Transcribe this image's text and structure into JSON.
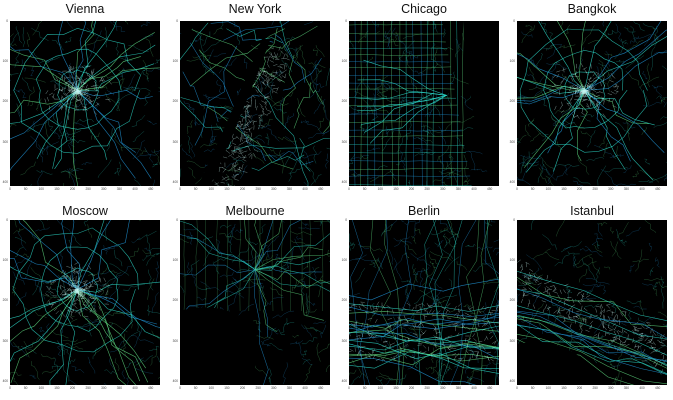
{
  "figure": {
    "panels": [
      {
        "city": "Vienna",
        "style": "radial",
        "accent": "#2ad3c3"
      },
      {
        "city": "New York",
        "style": "newyork",
        "accent": "#2ad3c3"
      },
      {
        "city": "Chicago",
        "style": "grid",
        "accent": "#2ad3c3"
      },
      {
        "city": "Bangkok",
        "style": "radial",
        "accent": "#3fd0d0"
      },
      {
        "city": "Moscow",
        "style": "radial",
        "accent": "#2ad3c3"
      },
      {
        "city": "Melbourne",
        "style": "bay",
        "accent": "#37c9a8"
      },
      {
        "city": "Berlin",
        "style": "band",
        "accent": "#2ad3c3"
      },
      {
        "city": "Istanbul",
        "style": "strait",
        "accent": "#2ad3c3"
      }
    ],
    "y_ticks": [
      "0",
      "100",
      "200",
      "300",
      "400"
    ],
    "x_ticks": [
      "0",
      "50",
      "100",
      "150",
      "200",
      "250",
      "300",
      "350",
      "400",
      "450"
    ],
    "colors": {
      "background": "#000000",
      "road_primary": "#2ad3c3",
      "road_secondary": "#1f8fd0",
      "road_minor": "#5ad07a",
      "road_core": "#c8f5f0"
    }
  }
}
